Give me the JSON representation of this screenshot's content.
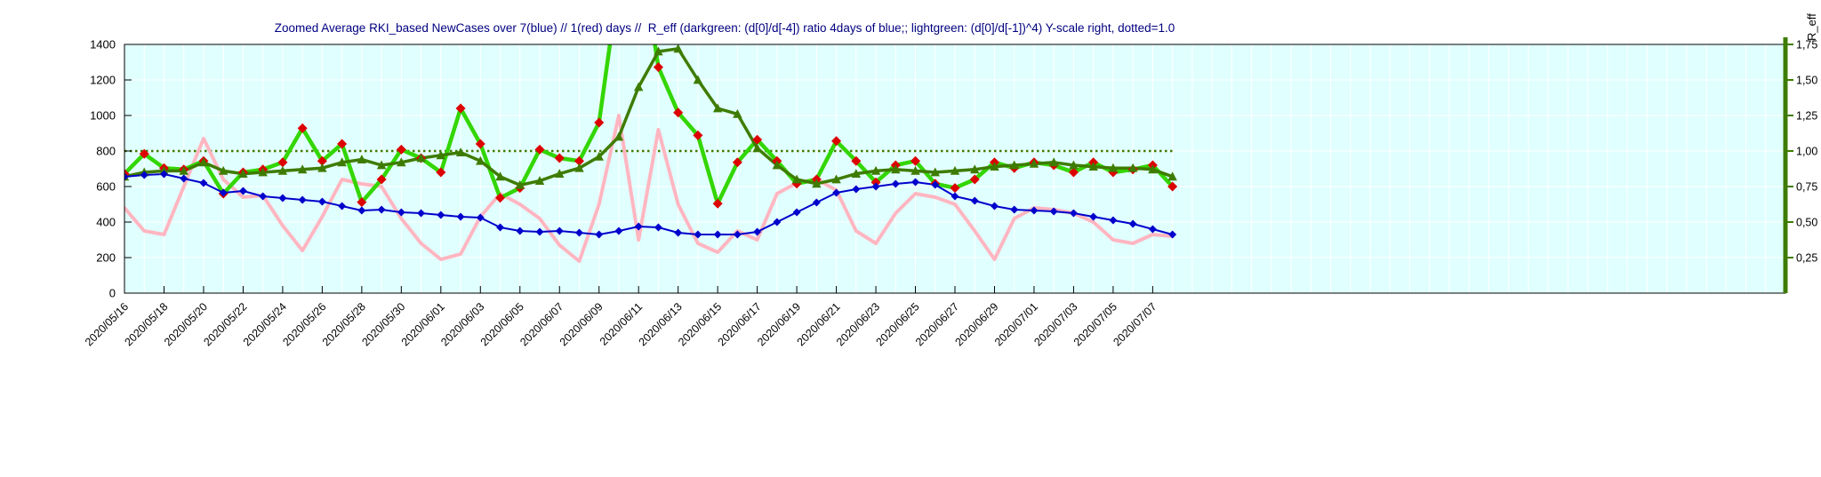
{
  "page": {
    "background_color": "#ffffff"
  },
  "chart_data": {
    "type": "line",
    "title": "Zoomed Average RKI_based NewCases over 7(blue) // 1(red) days //  R_eff (darkgreen: (d[0]/d[-4]) ratio 4days of blue;; lightgreen: (d[0]/d[-1])^4) Y-scale right, dotted=1.0",
    "colors": {
      "plot_background": "#e0ffff",
      "grid": "#ffffff",
      "dark_green": "#3e7c00",
      "light_green": "#33d600",
      "blue": "#0000cc",
      "pink": "#ffb6c1",
      "red": "#dd0000",
      "axis_text": "#000000",
      "title_text": "#000080"
    },
    "x_axis": {
      "start_date": "2020/05/16",
      "total_days": 84,
      "tick_step_days": 2,
      "tick_labels": [
        "2020/05/16",
        "2020/05/18",
        "2020/05/20",
        "2020/05/22",
        "2020/05/24",
        "2020/05/26",
        "2020/05/28",
        "2020/05/30",
        "2020/06/01",
        "2020/06/03",
        "2020/06/05",
        "2020/06/07",
        "2020/06/09",
        "2020/06/11",
        "2020/06/13",
        "2020/06/15",
        "2020/06/17",
        "2020/06/19",
        "2020/06/21",
        "2020/06/23",
        "2020/06/25",
        "2020/06/27",
        "2020/06/29",
        "2020/07/01",
        "2020/07/03",
        "2020/07/05",
        "2020/07/07"
      ]
    },
    "left_axis": {
      "lim": [
        0,
        1400
      ],
      "ticks": [
        0,
        200,
        400,
        600,
        800,
        1000,
        1200,
        1400
      ]
    },
    "right_axis": {
      "title": "R_eff",
      "left_units_per_unit": 800,
      "dotted_value": 1.0,
      "ticks": [
        {
          "value": 0.25,
          "label": "0,25"
        },
        {
          "value": 0.5,
          "label": "0,50"
        },
        {
          "value": 0.75,
          "label": "0,75"
        },
        {
          "value": 1.0,
          "label": "1,00"
        },
        {
          "value": 1.25,
          "label": "1,25"
        },
        {
          "value": 1.5,
          "label": "1,50"
        },
        {
          "value": 1.75,
          "label": "1,75"
        }
      ]
    },
    "dates_start": "2020/05/16",
    "points_per_series": 54,
    "series": [
      {
        "name": "newcases-1day-pink",
        "axis": "left",
        "color": "#ffb6c1",
        "width": 4,
        "marker": "none",
        "values": [
          480,
          350,
          330,
          600,
          870,
          640,
          540,
          550,
          380,
          240,
          430,
          640,
          615,
          600,
          420,
          280,
          190,
          220,
          430,
          560,
          500,
          420,
          270,
          180,
          500,
          1000,
          300,
          920,
          500,
          280,
          230,
          350,
          300,
          560,
          620,
          640,
          580,
          350,
          280,
          450,
          560,
          540,
          500,
          350,
          190,
          420,
          480,
          470,
          450,
          400,
          300,
          280,
          330,
          320
        ]
      },
      {
        "name": "reff-lightgreen",
        "axis": "right",
        "color": "#33d600",
        "width": 4.5,
        "marker": "diamond",
        "marker_color": "#dd0000",
        "marker_size": 5.5,
        "values": [
          0.84,
          0.98,
          0.88,
          0.87,
          0.93,
          0.7,
          0.85,
          0.87,
          0.92,
          1.16,
          0.93,
          1.05,
          0.64,
          0.8,
          1.01,
          0.95,
          0.85,
          1.3,
          1.05,
          0.67,
          0.74,
          1.01,
          0.95,
          0.93,
          1.2,
          2.2,
          2.5,
          1.59,
          1.27,
          1.11,
          0.63,
          0.92,
          1.08,
          0.93,
          0.77,
          0.8,
          1.07,
          0.93,
          0.78,
          0.9,
          0.93,
          0.77,
          0.74,
          0.8,
          0.92,
          0.88,
          0.92,
          0.9,
          0.85,
          0.92,
          0.85,
          0.87,
          0.9,
          0.75
        ]
      },
      {
        "name": "reff-darkgreen",
        "axis": "right",
        "color": "#3e7c00",
        "width": 3.5,
        "marker": "triangle",
        "marker_color": "#3e7c00",
        "marker_size": 5.5,
        "values": [
          0.82,
          0.85,
          0.86,
          0.86,
          0.92,
          0.86,
          0.84,
          0.85,
          0.86,
          0.87,
          0.88,
          0.92,
          0.94,
          0.9,
          0.92,
          0.95,
          0.97,
          0.99,
          0.93,
          0.82,
          0.76,
          0.79,
          0.84,
          0.88,
          0.96,
          1.1,
          1.45,
          1.7,
          1.72,
          1.5,
          1.3,
          1.26,
          1.02,
          0.9,
          0.8,
          0.77,
          0.8,
          0.84,
          0.86,
          0.87,
          0.86,
          0.85,
          0.86,
          0.87,
          0.89,
          0.9,
          0.91,
          0.92,
          0.9,
          0.89,
          0.88,
          0.88,
          0.87,
          0.82
        ]
      },
      {
        "name": "newcases-7day-blue",
        "axis": "left",
        "color": "#0000cc",
        "width": 2,
        "marker": "diamond",
        "marker_color": "#0000cc",
        "marker_size": 4.5,
        "values": [
          655,
          665,
          670,
          645,
          620,
          565,
          575,
          545,
          535,
          525,
          515,
          490,
          465,
          470,
          455,
          450,
          440,
          430,
          425,
          370,
          350,
          345,
          350,
          340,
          330,
          350,
          375,
          370,
          340,
          330,
          330,
          330,
          345,
          400,
          455,
          510,
          565,
          585,
          600,
          615,
          625,
          610,
          545,
          520,
          490,
          470,
          465,
          460,
          450,
          430,
          410,
          390,
          360,
          330
        ]
      }
    ]
  }
}
